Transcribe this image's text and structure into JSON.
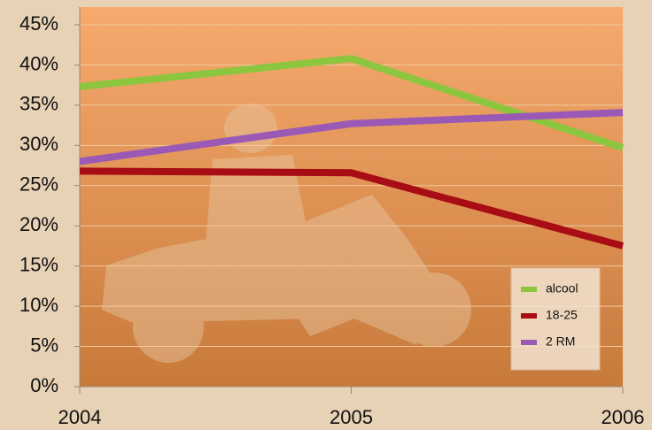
{
  "chart_data": {
    "type": "line",
    "x": [
      2004,
      2005,
      2006
    ],
    "series": [
      {
        "name": "alcool",
        "color": "#8cc63e",
        "values": [
          37.3,
          40.8,
          29.7
        ]
      },
      {
        "name": "18-25",
        "color": "#a80c14",
        "values": [
          26.8,
          26.6,
          17.5
        ]
      },
      {
        "name": "2 RM",
        "color": "#9b59b6",
        "values": [
          28.0,
          32.7,
          34.1
        ]
      }
    ],
    "xlim": [
      2004,
      2006
    ],
    "xticks": [
      2004,
      2005,
      2006
    ],
    "ylim": [
      0,
      45
    ],
    "yticks": [
      {
        "value": 0,
        "label": "0%"
      },
      {
        "value": 5,
        "label": "5%"
      },
      {
        "value": 10,
        "label": "10%"
      },
      {
        "value": 15,
        "label": "15%"
      },
      {
        "value": 20,
        "label": "20%"
      },
      {
        "value": 25,
        "label": "25%"
      },
      {
        "value": 30,
        "label": "30%"
      },
      {
        "value": 35,
        "label": "35%"
      },
      {
        "value": 40,
        "label": "40%"
      },
      {
        "value": 45,
        "label": "45%"
      }
    ],
    "grid": true
  }
}
